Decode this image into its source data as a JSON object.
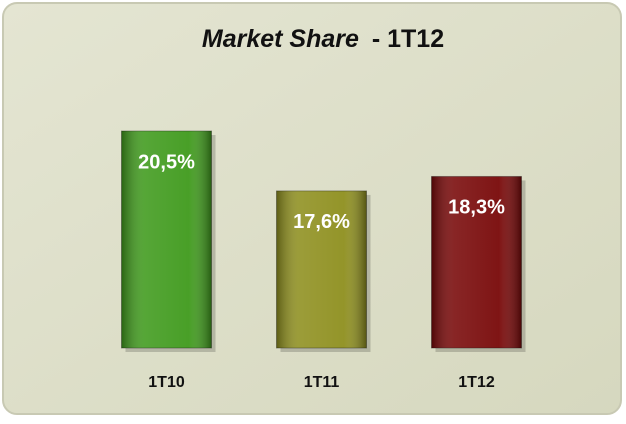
{
  "chart_data": {
    "type": "bar",
    "title_parts": [
      "Market Share",
      "- 1T12"
    ],
    "categories": [
      "1T10",
      "1T11",
      "1T12"
    ],
    "values": [
      20.5,
      17.6,
      18.3
    ],
    "value_labels": [
      "20,5%",
      "17,6%",
      "18,3%"
    ],
    "colors": [
      "#3f9a1c",
      "#8e8f1e",
      "#780808"
    ],
    "ylim": [
      10,
      22
    ]
  }
}
